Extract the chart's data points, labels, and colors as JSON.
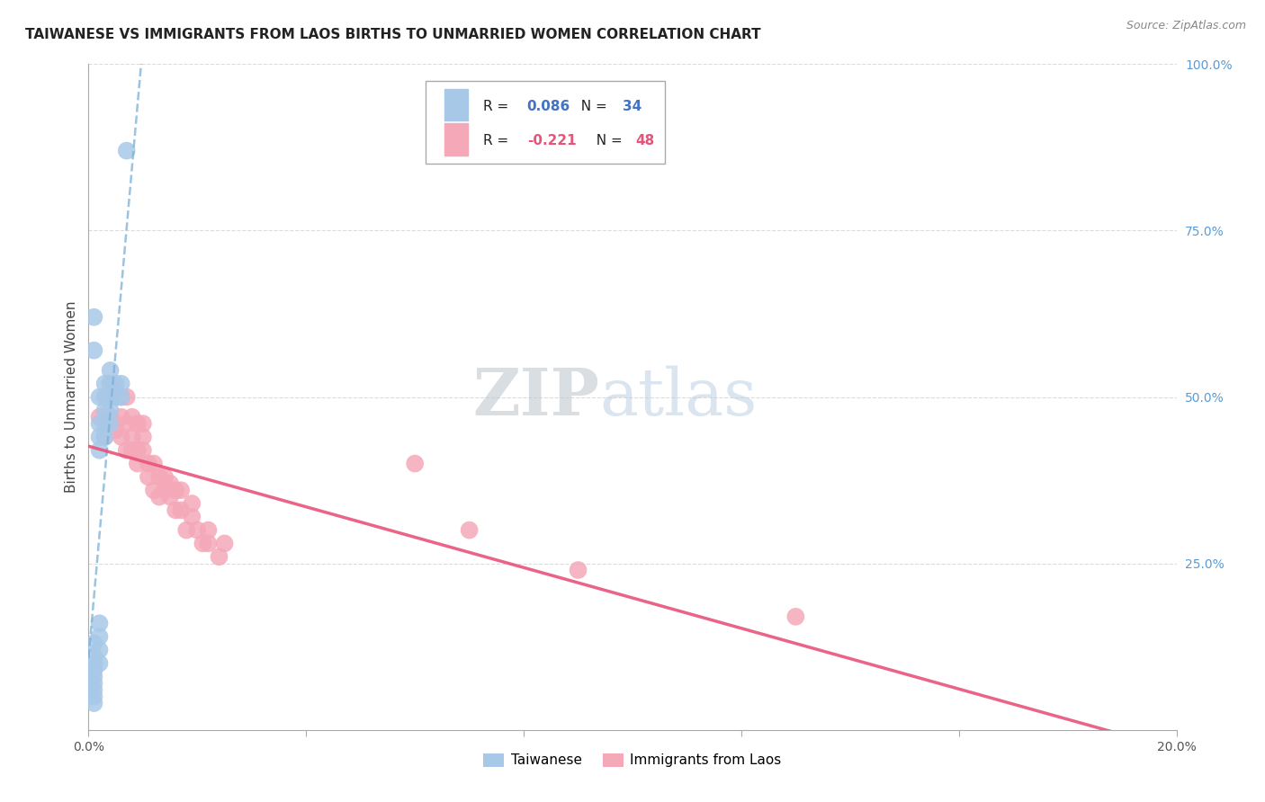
{
  "title": "TAIWANESE VS IMMIGRANTS FROM LAOS BIRTHS TO UNMARRIED WOMEN CORRELATION CHART",
  "source": "Source: ZipAtlas.com",
  "ylabel_label": "Births to Unmarried Women",
  "xmin": 0.0,
  "xmax": 0.2,
  "ymin": 0.0,
  "ymax": 1.0,
  "x_tick_positions": [
    0.0,
    0.04,
    0.08,
    0.12,
    0.16,
    0.2
  ],
  "x_tick_labels": [
    "0.0%",
    "",
    "",
    "",
    "",
    "20.0%"
  ],
  "y_tick_labels_right": [
    "100.0%",
    "75.0%",
    "50.0%",
    "25.0%"
  ],
  "y_tick_positions_right": [
    1.0,
    0.75,
    0.5,
    0.25
  ],
  "r_taiwanese": 0.086,
  "n_taiwanese": 34,
  "r_laos": -0.221,
  "n_laos": 48,
  "taiwanese_color": "#a8c8e8",
  "laos_color": "#f4a8b8",
  "taiwanese_line_color": "#7ab0d8",
  "laos_line_color": "#e8537a",
  "taiwanese_scatter_x": [
    0.001,
    0.001,
    0.001,
    0.001,
    0.001,
    0.001,
    0.001,
    0.001,
    0.001,
    0.001,
    0.001,
    0.002,
    0.002,
    0.002,
    0.002,
    0.002,
    0.002,
    0.002,
    0.002,
    0.003,
    0.003,
    0.003,
    0.003,
    0.003,
    0.004,
    0.004,
    0.004,
    0.004,
    0.004,
    0.005,
    0.005,
    0.006,
    0.006,
    0.007
  ],
  "taiwanese_scatter_y": [
    0.04,
    0.05,
    0.06,
    0.07,
    0.08,
    0.09,
    0.1,
    0.11,
    0.13,
    0.57,
    0.62,
    0.1,
    0.12,
    0.14,
    0.16,
    0.42,
    0.44,
    0.46,
    0.5,
    0.44,
    0.46,
    0.48,
    0.5,
    0.52,
    0.46,
    0.48,
    0.5,
    0.52,
    0.54,
    0.5,
    0.52,
    0.5,
    0.52,
    0.87
  ],
  "laos_scatter_x": [
    0.002,
    0.003,
    0.004,
    0.004,
    0.005,
    0.005,
    0.006,
    0.006,
    0.006,
    0.007,
    0.007,
    0.007,
    0.008,
    0.008,
    0.008,
    0.009,
    0.009,
    0.009,
    0.01,
    0.01,
    0.01,
    0.011,
    0.011,
    0.012,
    0.012,
    0.013,
    0.013,
    0.014,
    0.014,
    0.015,
    0.015,
    0.016,
    0.016,
    0.017,
    0.017,
    0.018,
    0.019,
    0.019,
    0.02,
    0.021,
    0.022,
    0.022,
    0.024,
    0.025,
    0.06,
    0.07,
    0.09,
    0.13
  ],
  "laos_scatter_y": [
    0.47,
    0.44,
    0.47,
    0.52,
    0.45,
    0.5,
    0.44,
    0.47,
    0.5,
    0.42,
    0.46,
    0.5,
    0.42,
    0.44,
    0.47,
    0.4,
    0.42,
    0.46,
    0.42,
    0.44,
    0.46,
    0.38,
    0.4,
    0.36,
    0.4,
    0.35,
    0.38,
    0.36,
    0.38,
    0.35,
    0.37,
    0.33,
    0.36,
    0.33,
    0.36,
    0.3,
    0.32,
    0.34,
    0.3,
    0.28,
    0.28,
    0.3,
    0.26,
    0.28,
    0.4,
    0.3,
    0.24,
    0.17
  ],
  "background_color": "#ffffff",
  "grid_color": "#d8d8d8",
  "watermark_zip_color": "#c0c8d0",
  "watermark_atlas_color": "#b8cce0",
  "title_fontsize": 11,
  "axis_label_fontsize": 11,
  "tick_fontsize": 10,
  "legend_text_blue": "#4472c4",
  "legend_text_pink": "#e8537a"
}
